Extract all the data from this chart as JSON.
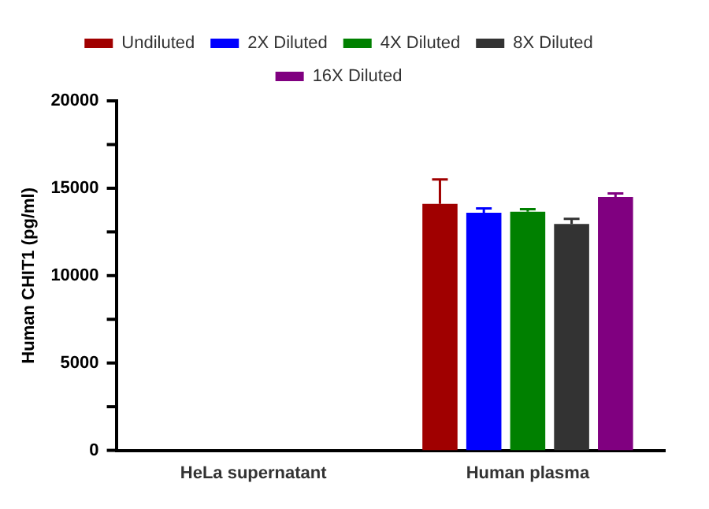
{
  "chart_data": {
    "type": "bar",
    "ylabel": "Human CHIT1 (pg/ml)",
    "categories": [
      "HeLa supernatant",
      "Human plasma"
    ],
    "series": [
      {
        "name": "Undiluted",
        "color": "#a00000",
        "values": [
          0,
          14100
        ],
        "errors": [
          null,
          [
            14100,
            15500
          ]
        ]
      },
      {
        "name": "2X Diluted",
        "color": "#0000ff",
        "values": [
          0,
          13600
        ],
        "errors": [
          null,
          [
            13600,
            13850
          ]
        ]
      },
      {
        "name": "4X Diluted",
        "color": "#008000",
        "values": [
          0,
          13650
        ],
        "errors": [
          null,
          [
            13650,
            13800
          ]
        ]
      },
      {
        "name": "8X Diluted",
        "color": "#333333",
        "values": [
          0,
          12950
        ],
        "errors": [
          null,
          [
            12950,
            13250
          ]
        ]
      },
      {
        "name": "16X Diluted",
        "color": "#800080",
        "values": [
          0,
          14500
        ],
        "errors": [
          null,
          [
            14500,
            14700
          ]
        ]
      }
    ],
    "ylim": [
      0,
      20000
    ],
    "yticks": [
      0,
      {
        "value": 2500,
        "label": null
      },
      5000,
      {
        "value": 7500,
        "label": null
      },
      10000,
      {
        "value": 12500,
        "label": null
      },
      15000,
      {
        "value": 17500,
        "label": null
      },
      20000
    ],
    "grid": false,
    "legend": "top"
  }
}
